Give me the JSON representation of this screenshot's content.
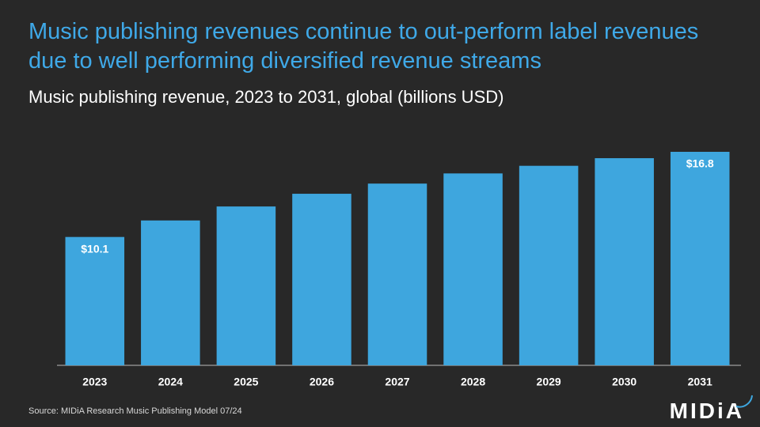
{
  "chart_data": {
    "type": "bar",
    "title": "Music publishing revenues continue to out-perform label revenues due to well performing diversified revenue streams",
    "subtitle": "Music publishing revenue, 2023 to 2031, global (billions USD)",
    "categories": [
      "2023",
      "2024",
      "2025",
      "2026",
      "2027",
      "2028",
      "2029",
      "2030",
      "2031"
    ],
    "values": [
      10.1,
      11.4,
      12.5,
      13.5,
      14.3,
      15.1,
      15.7,
      16.3,
      16.8
    ],
    "value_labels": [
      "$10.1",
      null,
      null,
      null,
      null,
      null,
      null,
      null,
      "$16.8"
    ],
    "color": "#3ea6de",
    "source": "Source: MIDiA Research Music Publishing Model 07/24"
  },
  "logo": "MIDiA"
}
